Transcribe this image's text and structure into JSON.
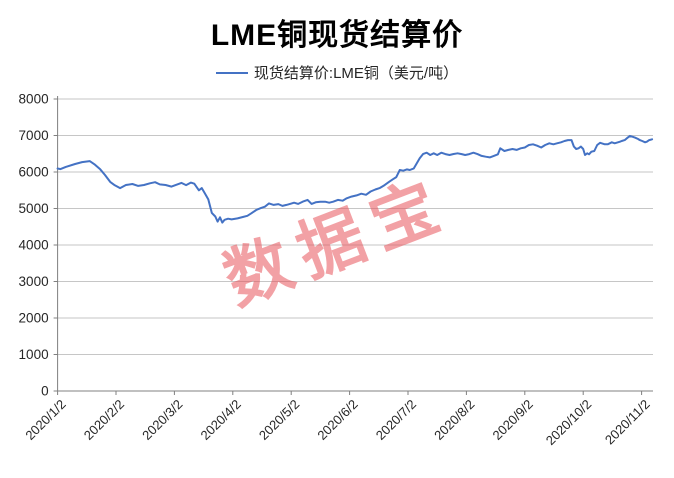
{
  "title": "LME铜现货结算价",
  "legend": {
    "label": "现货结算价:LME铜（美元/吨）"
  },
  "watermark": {
    "text": "数据宝",
    "color": "#e8555c"
  },
  "colors": {
    "line": "#4472c4",
    "grid": "#c6c6c6",
    "axis": "#808080",
    "tick_label": "#262626"
  },
  "chart_data": {
    "type": "line",
    "title": "LME铜现货结算价",
    "legend_entries": [
      "现货结算价:LME铜（美元/吨）"
    ],
    "legend_position": "top-center",
    "grid": "horizontal",
    "ylim": [
      0,
      8000
    ],
    "y_ticks": [
      0,
      1000,
      2000,
      3000,
      4000,
      5000,
      6000,
      7000,
      8000
    ],
    "x_tick_labels": [
      "2020/1/2",
      "2020/2/2",
      "2020/3/2",
      "2020/4/2",
      "2020/5/2",
      "2020/6/2",
      "2020/7/2",
      "2020/8/2",
      "2020/9/2",
      "2020/10/2",
      "2020/11/2"
    ],
    "x_unit": "months after 2020/1/2 (one tick interval = 1)",
    "series": [
      {
        "name": "现货结算价:LME铜（美元/吨）",
        "color": "#4472c4",
        "points": [
          [
            0.0,
            6095
          ],
          [
            0.05,
            6080
          ],
          [
            0.14,
            6140
          ],
          [
            0.3,
            6220
          ],
          [
            0.42,
            6270
          ],
          [
            0.55,
            6300
          ],
          [
            0.64,
            6200
          ],
          [
            0.73,
            6075
          ],
          [
            0.81,
            5920
          ],
          [
            0.9,
            5730
          ],
          [
            0.98,
            5635
          ],
          [
            1.07,
            5560
          ],
          [
            1.17,
            5645
          ],
          [
            1.28,
            5670
          ],
          [
            1.38,
            5620
          ],
          [
            1.48,
            5645
          ],
          [
            1.58,
            5690
          ],
          [
            1.67,
            5720
          ],
          [
            1.75,
            5660
          ],
          [
            1.85,
            5645
          ],
          [
            1.95,
            5600
          ],
          [
            2.05,
            5660
          ],
          [
            2.12,
            5700
          ],
          [
            2.2,
            5640
          ],
          [
            2.28,
            5710
          ],
          [
            2.34,
            5680
          ],
          [
            2.42,
            5500
          ],
          [
            2.47,
            5560
          ],
          [
            2.52,
            5420
          ],
          [
            2.58,
            5250
          ],
          [
            2.64,
            4880
          ],
          [
            2.7,
            4780
          ],
          [
            2.74,
            4640
          ],
          [
            2.78,
            4760
          ],
          [
            2.82,
            4615
          ],
          [
            2.86,
            4690
          ],
          [
            2.92,
            4720
          ],
          [
            2.98,
            4700
          ],
          [
            3.08,
            4730
          ],
          [
            3.18,
            4770
          ],
          [
            3.25,
            4800
          ],
          [
            3.32,
            4870
          ],
          [
            3.4,
            4960
          ],
          [
            3.48,
            5010
          ],
          [
            3.55,
            5050
          ],
          [
            3.62,
            5140
          ],
          [
            3.7,
            5100
          ],
          [
            3.78,
            5120
          ],
          [
            3.85,
            5070
          ],
          [
            3.92,
            5100
          ],
          [
            3.98,
            5125
          ],
          [
            4.05,
            5160
          ],
          [
            4.12,
            5125
          ],
          [
            4.2,
            5190
          ],
          [
            4.28,
            5235
          ],
          [
            4.35,
            5125
          ],
          [
            4.42,
            5170
          ],
          [
            4.5,
            5185
          ],
          [
            4.58,
            5185
          ],
          [
            4.65,
            5160
          ],
          [
            4.72,
            5185
          ],
          [
            4.8,
            5235
          ],
          [
            4.88,
            5215
          ],
          [
            4.95,
            5280
          ],
          [
            5.03,
            5325
          ],
          [
            5.12,
            5360
          ],
          [
            5.2,
            5405
          ],
          [
            5.28,
            5375
          ],
          [
            5.36,
            5465
          ],
          [
            5.44,
            5520
          ],
          [
            5.52,
            5565
          ],
          [
            5.6,
            5640
          ],
          [
            5.68,
            5735
          ],
          [
            5.74,
            5800
          ],
          [
            5.8,
            5860
          ],
          [
            5.86,
            6055
          ],
          [
            5.92,
            6035
          ],
          [
            5.98,
            6070
          ],
          [
            6.03,
            6055
          ],
          [
            6.1,
            6100
          ],
          [
            6.15,
            6240
          ],
          [
            6.2,
            6375
          ],
          [
            6.26,
            6495
          ],
          [
            6.32,
            6530
          ],
          [
            6.38,
            6465
          ],
          [
            6.44,
            6512
          ],
          [
            6.5,
            6465
          ],
          [
            6.57,
            6530
          ],
          [
            6.64,
            6490
          ],
          [
            6.71,
            6465
          ],
          [
            6.78,
            6493
          ],
          [
            6.85,
            6512
          ],
          [
            6.92,
            6490
          ],
          [
            6.98,
            6465
          ],
          [
            7.05,
            6490
          ],
          [
            7.12,
            6530
          ],
          [
            7.19,
            6490
          ],
          [
            7.26,
            6440
          ],
          [
            7.33,
            6420
          ],
          [
            7.4,
            6400
          ],
          [
            7.47,
            6440
          ],
          [
            7.54,
            6485
          ],
          [
            7.58,
            6650
          ],
          [
            7.65,
            6575
          ],
          [
            7.72,
            6605
          ],
          [
            7.79,
            6630
          ],
          [
            7.86,
            6605
          ],
          [
            7.93,
            6650
          ],
          [
            8.0,
            6670
          ],
          [
            8.07,
            6740
          ],
          [
            8.14,
            6760
          ],
          [
            8.21,
            6720
          ],
          [
            8.28,
            6670
          ],
          [
            8.35,
            6740
          ],
          [
            8.42,
            6785
          ],
          [
            8.49,
            6760
          ],
          [
            8.56,
            6790
          ],
          [
            8.62,
            6815
          ],
          [
            8.68,
            6850
          ],
          [
            8.74,
            6875
          ],
          [
            8.8,
            6875
          ],
          [
            8.84,
            6695
          ],
          [
            8.88,
            6630
          ],
          [
            8.92,
            6650
          ],
          [
            8.96,
            6695
          ],
          [
            9.0,
            6630
          ],
          [
            9.03,
            6465
          ],
          [
            9.07,
            6512
          ],
          [
            9.1,
            6485
          ],
          [
            9.14,
            6555
          ],
          [
            9.19,
            6575
          ],
          [
            9.24,
            6740
          ],
          [
            9.29,
            6800
          ],
          [
            9.37,
            6760
          ],
          [
            9.42,
            6758
          ],
          [
            9.49,
            6813
          ],
          [
            9.54,
            6785
          ],
          [
            9.63,
            6830
          ],
          [
            9.66,
            6850
          ],
          [
            9.71,
            6875
          ],
          [
            9.76,
            6940
          ],
          [
            9.8,
            6990
          ],
          [
            9.85,
            6965
          ],
          [
            9.89,
            6940
          ],
          [
            9.94,
            6905
          ],
          [
            9.97,
            6875
          ],
          [
            10.01,
            6850
          ],
          [
            10.06,
            6815
          ],
          [
            10.09,
            6830
          ],
          [
            10.13,
            6875
          ],
          [
            10.18,
            6895
          ]
        ]
      }
    ]
  }
}
